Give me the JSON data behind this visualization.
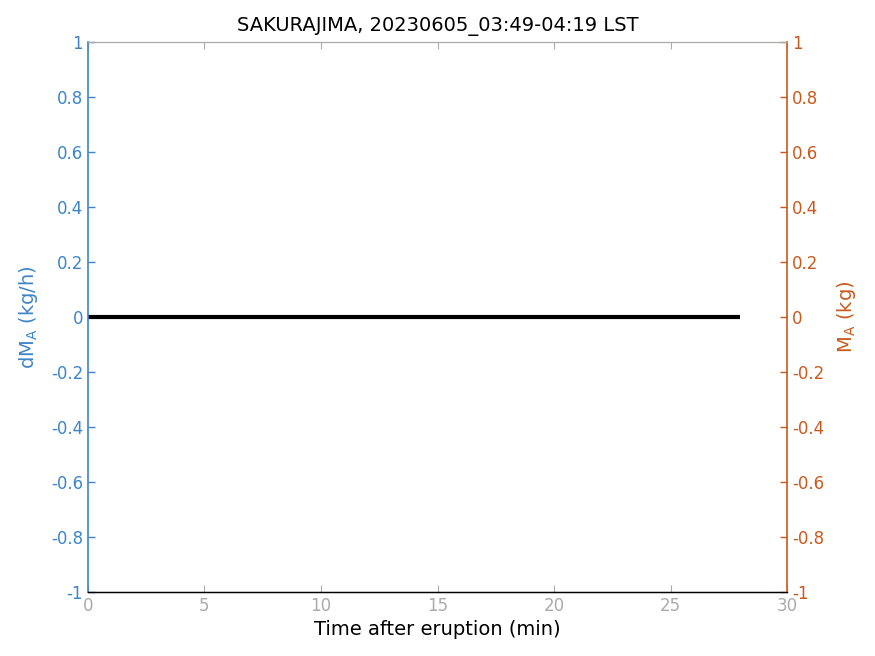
{
  "title": "SAKURAJIMA, 20230605_03:49-04:19 LST",
  "xlabel": "Time after eruption (min)",
  "ylabel_left": "dM_A (kg/h)",
  "ylabel_right": "M_A (kg)",
  "xlim": [
    0,
    30
  ],
  "ylim": [
    -1,
    1
  ],
  "xticks": [
    0,
    5,
    10,
    15,
    20,
    25,
    30
  ],
  "yticks": [
    -1,
    -0.8,
    -0.6,
    -0.4,
    -0.2,
    0,
    0.2,
    0.4,
    0.6,
    0.8,
    1
  ],
  "line_x": [
    0,
    28
  ],
  "line_y": [
    0,
    0
  ],
  "line_color": "#000000",
  "line_width": 3.0,
  "left_label_color": "#3d85c8",
  "right_label_color": "#c85a1e",
  "title_color": "#000000",
  "xlabel_color": "#000000",
  "background_color": "#ffffff",
  "spine_top_color": "#aaaaaa",
  "spine_bottom_color": "#000000",
  "title_fontsize": 14,
  "label_fontsize": 14,
  "tick_fontsize": 12
}
